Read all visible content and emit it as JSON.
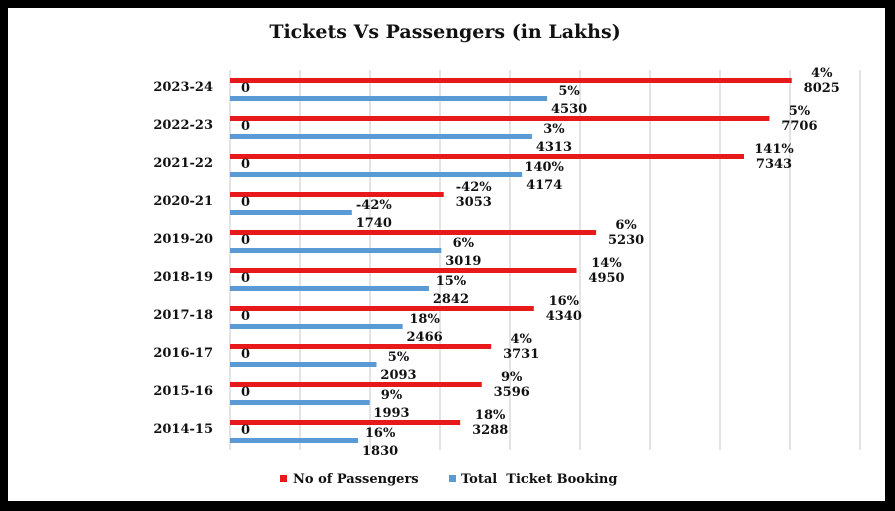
{
  "chart_data": {
    "type": "bar",
    "orientation": "horizontal",
    "title": "Tickets Vs Passengers (in Lakhs)",
    "categories": [
      "2023-24",
      "2022-23",
      "2021-22",
      "2020-21",
      "2019-20",
      "2018-19",
      "2017-18",
      "2016-17",
      "2015-16",
      "2014-15"
    ],
    "series": [
      {
        "name": "No of Passengers",
        "color": "#e8191b",
        "values": [
          8025,
          7706,
          7343,
          3053,
          5230,
          4950,
          4340,
          3731,
          3596,
          3288
        ],
        "growth_labels": [
          "4%",
          "5%",
          "141%",
          "-42%",
          "6%",
          "14%",
          "16%",
          "4%",
          "9%",
          "18%"
        ]
      },
      {
        "name": "Total  Ticket Booking",
        "color": "#5b9bd5",
        "values": [
          4530,
          4313,
          4174,
          1740,
          3019,
          2842,
          2466,
          2093,
          1993,
          1830
        ],
        "growth_labels": [
          "5%",
          "3%",
          "140%",
          "-42%",
          "6%",
          "15%",
          "18%",
          "5%",
          "9%",
          "16%"
        ]
      }
    ],
    "axis_zero_label": "0",
    "xlim": [
      0,
      9000
    ],
    "grid": true,
    "legend_position": "bottom"
  }
}
